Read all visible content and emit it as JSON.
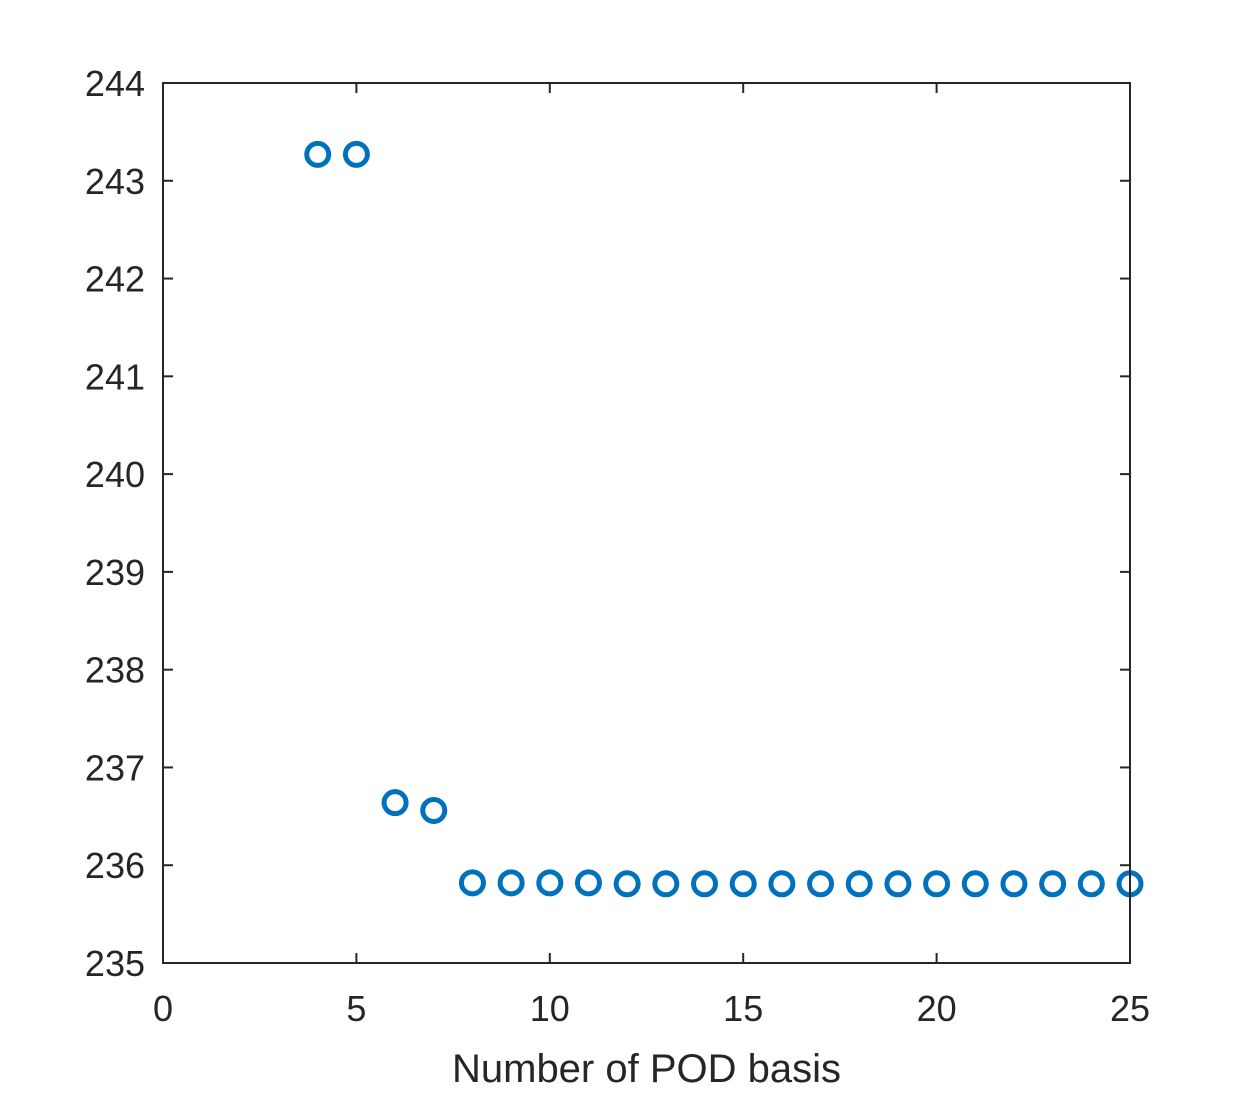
{
  "chart_data": {
    "type": "scatter",
    "title": "",
    "xlabel": "Number of POD basis",
    "ylabel": "",
    "xlim": [
      0,
      25
    ],
    "ylim": [
      235,
      244
    ],
    "xticks": [
      0,
      5,
      10,
      15,
      20,
      25
    ],
    "yticks": [
      235,
      236,
      237,
      238,
      239,
      240,
      241,
      242,
      243,
      244
    ],
    "grid": false,
    "box": true,
    "marker": "open-circle",
    "color": "#0072BD",
    "series": [
      {
        "x": [
          4,
          5,
          6,
          7,
          8,
          9,
          10,
          11,
          12,
          13,
          14,
          15,
          16,
          17,
          18,
          19,
          20,
          21,
          22,
          23,
          24,
          25
        ],
        "y": [
          243.27,
          243.27,
          236.64,
          236.56,
          235.82,
          235.82,
          235.82,
          235.82,
          235.81,
          235.81,
          235.81,
          235.81,
          235.81,
          235.81,
          235.81,
          235.81,
          235.81,
          235.81,
          235.81,
          235.81,
          235.81,
          235.81
        ]
      }
    ]
  }
}
